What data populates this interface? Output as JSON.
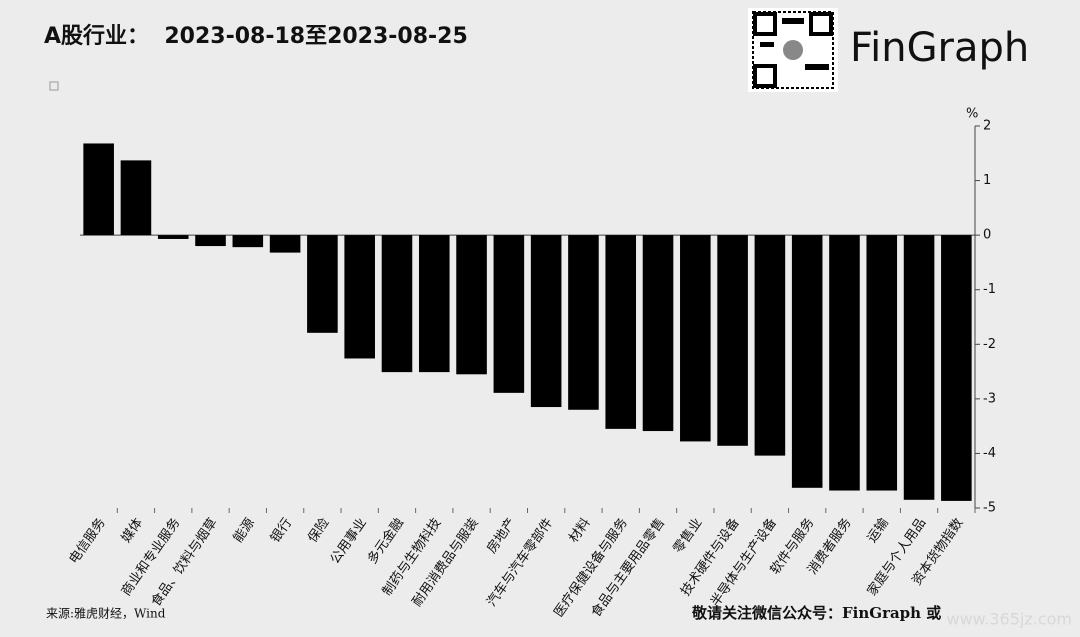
{
  "chart_data": {
    "type": "bar",
    "title": "A股行业：  2023-08-18至2023-08-25",
    "brand": "FinGraph",
    "y_unit": "%",
    "source": "来源:雅虎财经，Wind",
    "footer": "敬请关注微信公众号：FinGraph 或",
    "watermark": "www.365jz.com",
    "categories": [
      "电信服务",
      "媒体",
      "商业和专业服务",
      "食品、饮料与烟草",
      "能源",
      "银行",
      "保险",
      "公用事业",
      "多元金融",
      "制药与生物科技",
      "耐用消费品与服装",
      "房地产",
      "汽车与汽车零部件",
      "材料",
      "医疗保健设备与服务",
      "食品与主要用品零售",
      "零售业",
      "技术硬件与设备",
      "半导体与生产设备",
      "软件与服务",
      "消费者服务",
      "运输",
      "家庭与个人用品",
      "资本货物指数"
    ],
    "values": [
      1.68,
      1.37,
      -0.07,
      -0.2,
      -0.22,
      -0.32,
      -1.79,
      -2.26,
      -2.51,
      -2.51,
      -2.55,
      -2.89,
      -3.15,
      -3.2,
      -3.55,
      -3.59,
      -3.78,
      -3.86,
      -4.04,
      -4.63,
      -4.68,
      -4.68,
      -4.85,
      -4.87
    ],
    "color": "#000000",
    "ylim": [
      -5,
      2
    ],
    "yticks": [
      2,
      1,
      0,
      -1,
      -2,
      -3,
      -4,
      -5
    ],
    "grid": false
  }
}
